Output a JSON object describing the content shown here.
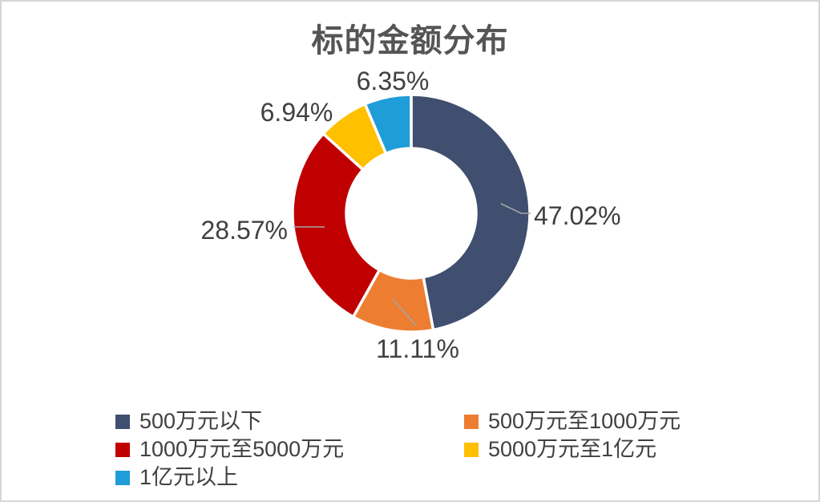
{
  "chart_data": {
    "type": "pie",
    "donut": true,
    "title": "标的金额分布",
    "categories": [
      "500万元以下",
      "500万元至1000万元",
      "1000万元至5000万元",
      "5000万元至1亿元",
      "1亿元以上"
    ],
    "values": [
      47.02,
      11.11,
      28.57,
      6.94,
      6.35
    ],
    "value_labels": [
      "47.02%",
      "11.11%",
      "28.57%",
      "6.94%",
      "6.35%"
    ],
    "colors": [
      "#404F6F",
      "#ED7D31",
      "#C00000",
      "#FFC000",
      "#1E9DD8"
    ],
    "start_angle_deg": 0,
    "direction": "clockwise",
    "inner_radius_ratio": 0.55,
    "legend_position": "bottom",
    "slice_gap_color": "#FFFFFF",
    "title_color": "#555555",
    "label_color": "#404040",
    "leader_line_color": "#A6A6A6"
  }
}
